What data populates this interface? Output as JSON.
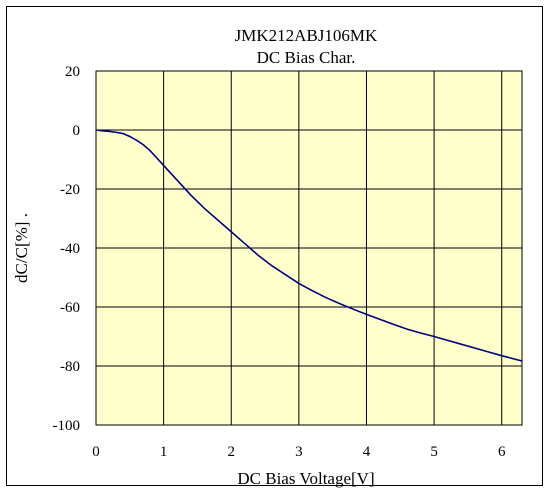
{
  "chart_data": {
    "type": "line",
    "title": "JMK212ABJ106MK",
    "subtitle": "DC Bias Char.",
    "xlabel": "DC Bias Voltage[V]",
    "ylabel": "dC/C[%] .",
    "xlim": [
      0,
      6.3
    ],
    "ylim": [
      -100,
      20
    ],
    "xticks": [
      0,
      1,
      2,
      3,
      4,
      5,
      6
    ],
    "yticks": [
      20,
      0,
      -20,
      -40,
      -60,
      -80,
      -100
    ],
    "grid": true,
    "legend": "none",
    "colors": {
      "plot_background": "#ffffcc",
      "line": "#000080",
      "grid": "#000000"
    },
    "series": [
      {
        "x": [
          0,
          0.1,
          0.2,
          0.3,
          0.4,
          0.5,
          0.6,
          0.7,
          0.8,
          0.9,
          1.0,
          1.2,
          1.4,
          1.6,
          1.8,
          2.0,
          2.2,
          2.4,
          2.6,
          2.8,
          3.0,
          3.2,
          3.4,
          3.6,
          3.8,
          4.0,
          4.2,
          4.4,
          4.6,
          4.8,
          5.0,
          5.2,
          5.4,
          5.6,
          5.8,
          6.0,
          6.2,
          6.3
        ],
        "y": [
          0,
          -0.3,
          -0.5,
          -0.8,
          -1.2,
          -2.2,
          -3.5,
          -5,
          -7,
          -9.5,
          -12,
          -17,
          -22,
          -26.5,
          -30.5,
          -34.5,
          -38.5,
          -42.5,
          -46,
          -49,
          -52,
          -54.5,
          -56.8,
          -58.8,
          -60.7,
          -62.5,
          -64.2,
          -65.9,
          -67.5,
          -68.8,
          -70,
          -71.3,
          -72.6,
          -73.9,
          -75.2,
          -76.5,
          -77.7,
          -78.3
        ]
      }
    ]
  }
}
